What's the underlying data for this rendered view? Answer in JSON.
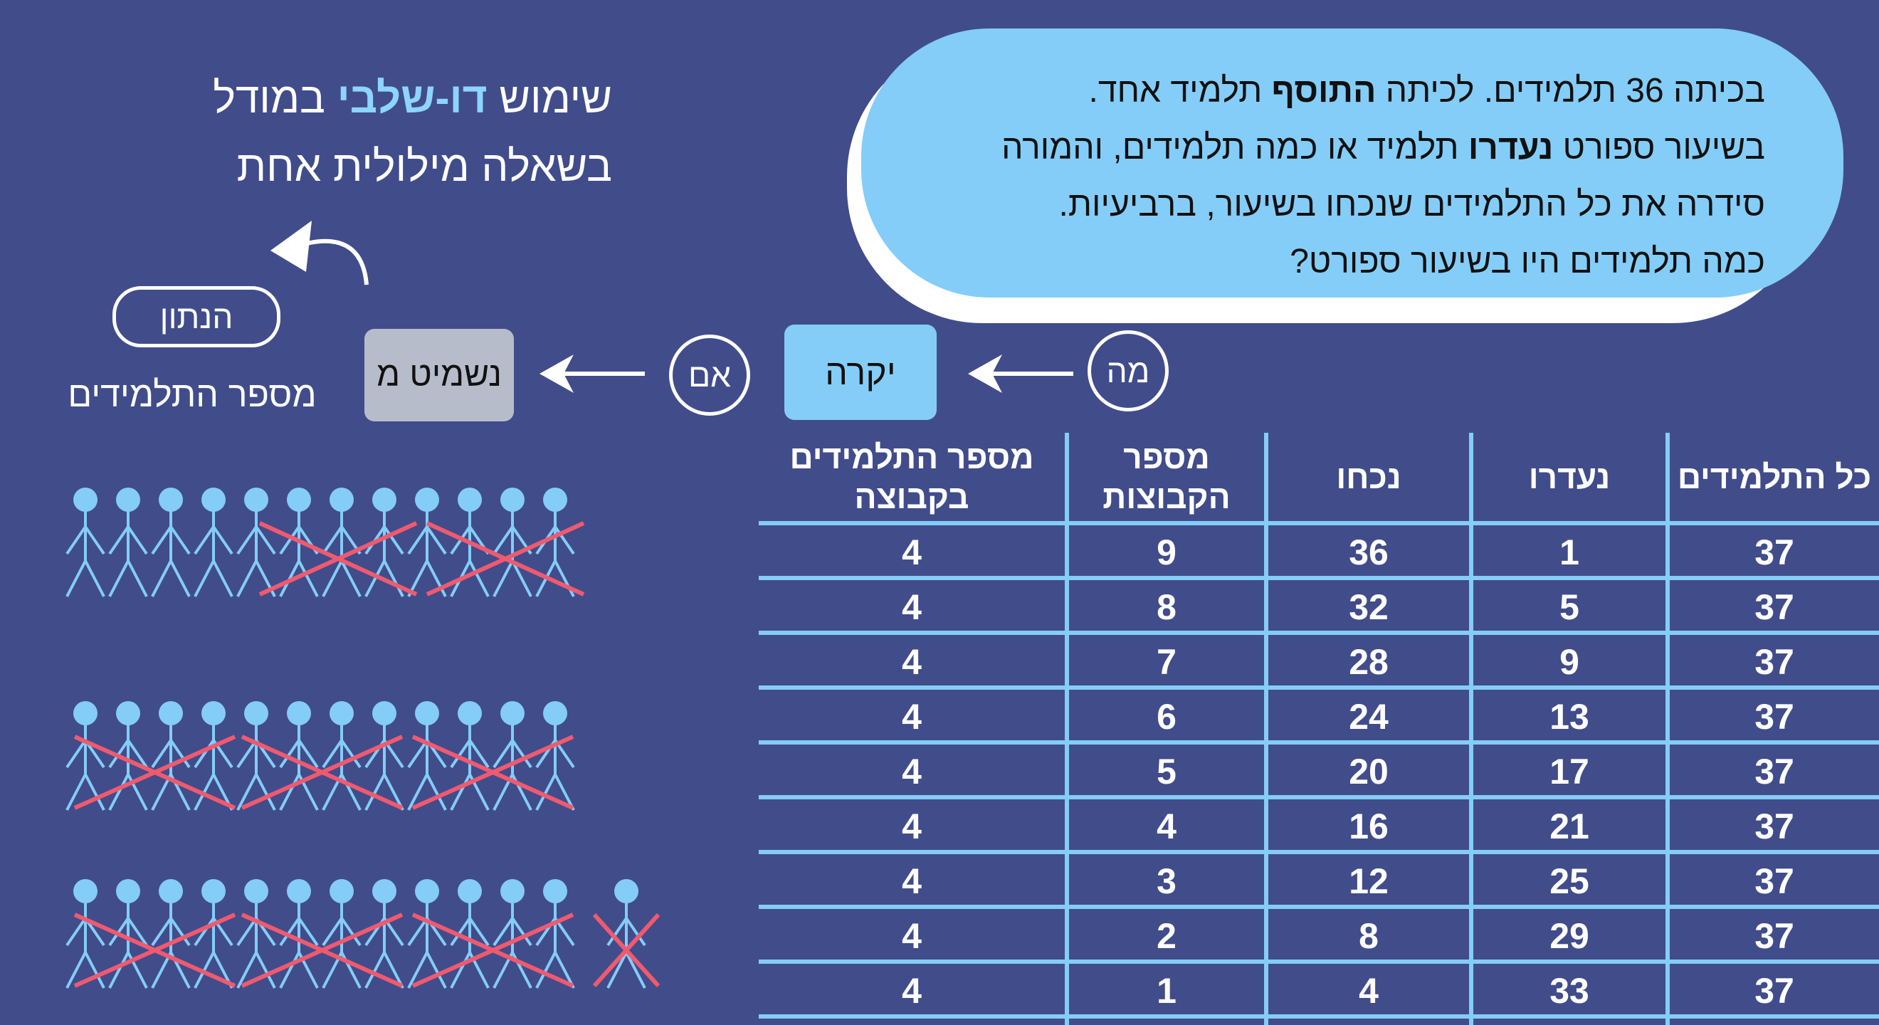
{
  "title": {
    "part1": "שימוש ",
    "highlight": "דו-שלבי",
    "part2": " במודל",
    "line2": "בשאלה מילולית אחת"
  },
  "problem": {
    "line1_a": "בכיתה 36 תלמידים. לכיתה ",
    "line1_bold": "התוסף",
    "line1_b": " תלמיד אחד.",
    "line2_a": "בשיעור ספורט ",
    "line2_bold": "נעדרו",
    "line2_b": " תלמיד או כמה תלמידים, והמורה",
    "line3": "סידרה את כל התלמידים שנכחו בשיעור, ברביעיות.",
    "line4": "כמה תלמידים היו בשיעור ספורט?"
  },
  "given": {
    "label": "הנתון",
    "text": "מספר התלמידים"
  },
  "chain": {
    "what": "מה",
    "happens": "יקרה",
    "if": "אם",
    "omit": "נשמיט מ"
  },
  "table": {
    "headers": [
      "כל התלמידים",
      "נעדרו",
      "נכחו",
      "מספר הקבוצות",
      "מספר התלמידים בקבוצה"
    ],
    "rows": [
      [
        "37",
        "1",
        "36",
        "9",
        "4"
      ],
      [
        "37",
        "5",
        "32",
        "8",
        "4"
      ],
      [
        "37",
        "9",
        "28",
        "7",
        "4"
      ],
      [
        "37",
        "13",
        "24",
        "6",
        "4"
      ],
      [
        "37",
        "17",
        "20",
        "5",
        "4"
      ],
      [
        "37",
        "21",
        "16",
        "4",
        "4"
      ],
      [
        "37",
        "25",
        "12",
        "3",
        "4"
      ],
      [
        "37",
        "29",
        "8",
        "2",
        "4"
      ],
      [
        "37",
        "33",
        "4",
        "1",
        "4"
      ]
    ]
  },
  "colors": {
    "background": "#414c8b",
    "accent": "#84cdf8",
    "cross": "#ef5a6f"
  }
}
